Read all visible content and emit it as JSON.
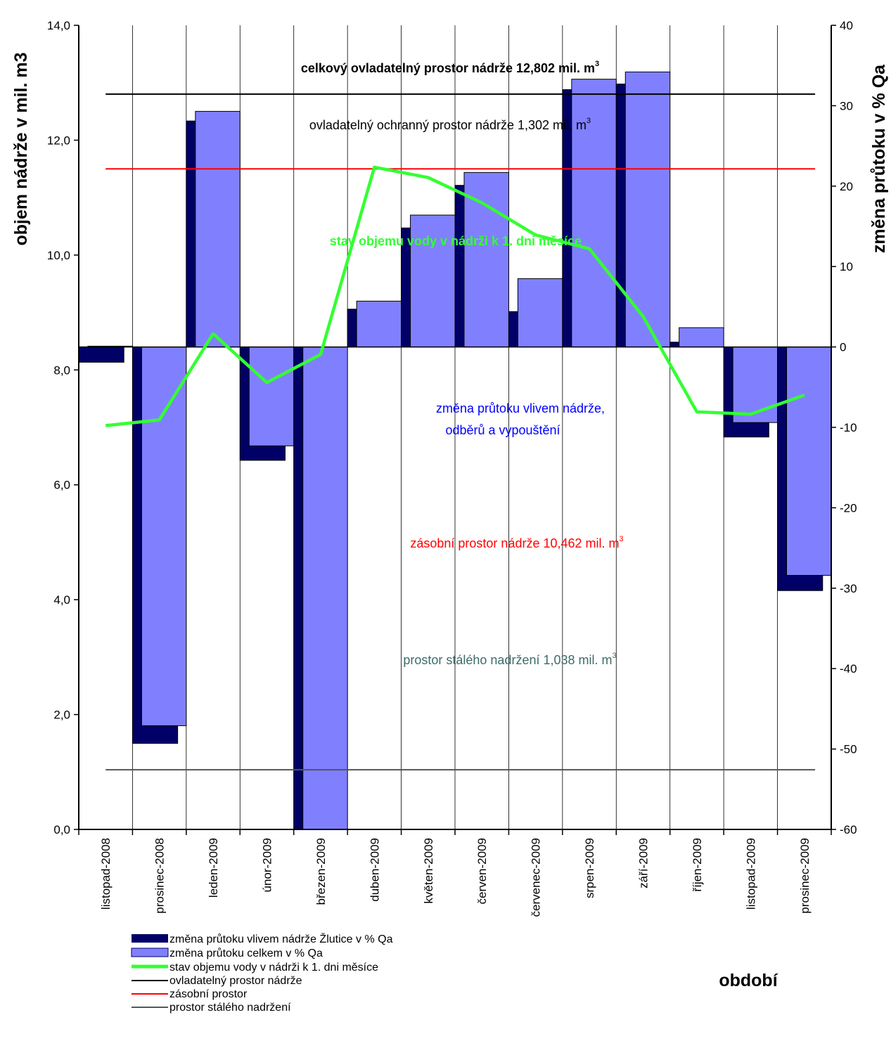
{
  "chart_data": {
    "type": "bar",
    "categories": [
      "listopad-2008",
      "prosinec-2008",
      "leden-2009",
      "únor-2009",
      "březen-2009",
      "duben-2009",
      "květen-2009",
      "červen-2009",
      "červenec-2009",
      "srpen-2009",
      "září-2009",
      "říjen-2009",
      "listopad-2009",
      "prosinec-2009"
    ],
    "left_axis": {
      "label": "objem nádrže v mil. m3",
      "ylim": [
        0,
        14
      ],
      "ticks": [
        "0,0",
        "2,0",
        "4,0",
        "6,0",
        "8,0",
        "10,0",
        "12,0",
        "14,0"
      ]
    },
    "right_axis": {
      "label": "změna průtoku v % Qa",
      "ylim": [
        -60,
        40
      ],
      "ticks": [
        "-60",
        "-50",
        "-40",
        "-30",
        "-20",
        "-10",
        "0",
        "10",
        "20",
        "30",
        "40"
      ]
    },
    "xlabel": "období",
    "series": [
      {
        "name": "změna průtoku vlivem nádrže Žlutice v % Qa",
        "axis": "right",
        "color": "#000066",
        "values": [
          -1.9,
          -49.3,
          28.1,
          -14.1,
          -61,
          4.7,
          14.8,
          20.1,
          4.4,
          32.0,
          32.7,
          0.6,
          -11.2,
          -30.3
        ]
      },
      {
        "name": "změna průtoku celkem v % Qa",
        "axis": "right",
        "color": "#8080ff",
        "values": [
          0.1,
          -47.1,
          29.3,
          -12.3,
          -61,
          5.7,
          16.4,
          21.7,
          8.5,
          33.3,
          34.2,
          2.4,
          -9.4,
          -28.4
        ]
      },
      {
        "name": "stav objemu vody v nádrži k 1. dni měsíce",
        "axis": "left",
        "color": "#33ff33",
        "values": [
          7.03,
          7.13,
          8.63,
          7.78,
          8.27,
          11.53,
          11.35,
          10.91,
          10.35,
          10.11,
          8.93,
          7.27,
          7.23,
          7.56
        ]
      }
    ],
    "reference_lines": [
      {
        "name": "ovladatelný prostor nádrže",
        "value": 12.802,
        "color": "#000000"
      },
      {
        "name": "zásobní prostor",
        "value": 11.5,
        "color": "#ff0000"
      },
      {
        "name": "prostor stálého nadržení",
        "value": 1.038,
        "color": "#555555"
      }
    ],
    "annotations": {
      "total_space": {
        "text": "celkový ovladatelný  prostor nádrže 12,802  mil. m",
        "sup": "3",
        "color": "#000000"
      },
      "protection_space": {
        "text": "ovladatelný ochranný prostor nádrže 1,302  mil. m",
        "sup": "3",
        "color": "#000000"
      },
      "volume_label": {
        "text": "stav objemu vody v   nádrži k 1. dni měsíce",
        "color": "#33ff33"
      },
      "flow_change_1": {
        "text": "změna průtoku vlivem nádrže,",
        "color": "#0000ff"
      },
      "flow_change_2": {
        "text": "odběrů a vypouštění",
        "color": "#0000ff"
      },
      "storage_space": {
        "text": "zásobní prostor nádrže 10,462 mil. m",
        "sup": "3",
        "color": "#ff0000"
      },
      "dead_space": {
        "text": "prostor stálého nadržení  1,038 mil. m",
        "sup": "3",
        "color": "#3d6b6b"
      }
    },
    "legend_position": "bottom-left",
    "grid": "vertical"
  }
}
